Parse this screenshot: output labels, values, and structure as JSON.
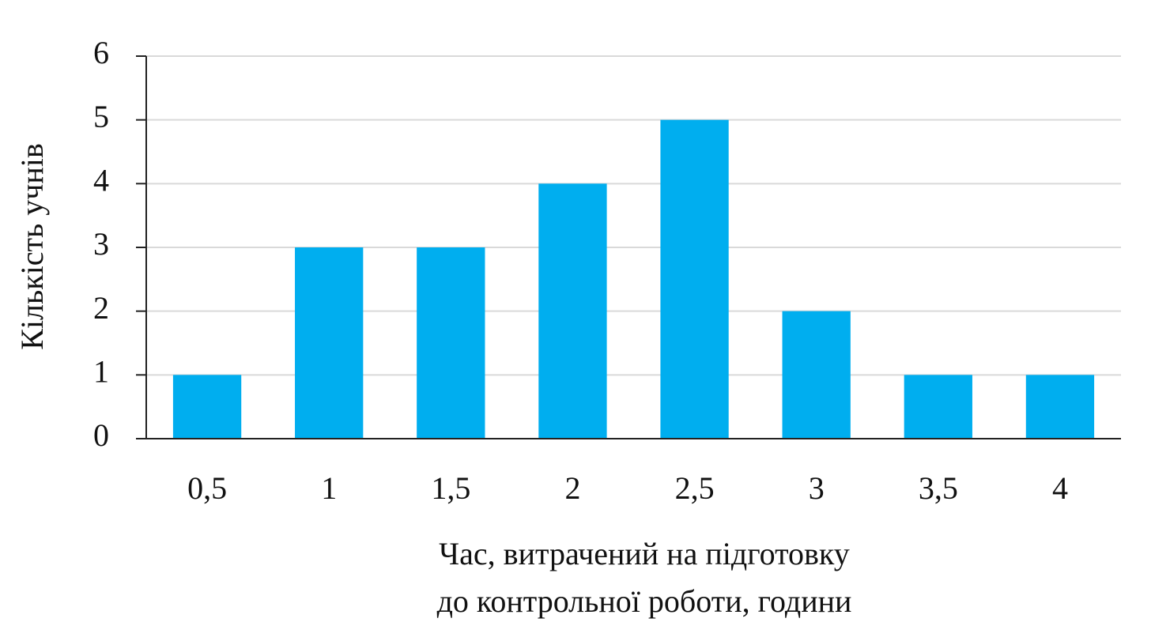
{
  "chart_data": {
    "type": "bar",
    "y_label": "Кількість учнів",
    "x_label": [
      "Час, витрачений на підготовку",
      "до контрольної роботи, години"
    ],
    "categories": [
      "0,5",
      "1",
      "1,5",
      "2",
      "2,5",
      "3",
      "3,5",
      "4"
    ],
    "values": [
      1,
      3,
      3,
      4,
      5,
      2,
      1,
      1
    ],
    "color": "#00aeef",
    "ylim": [
      0,
      6
    ],
    "yticks": [
      0,
      1,
      2,
      3,
      4,
      5,
      6
    ],
    "grid": true
  }
}
